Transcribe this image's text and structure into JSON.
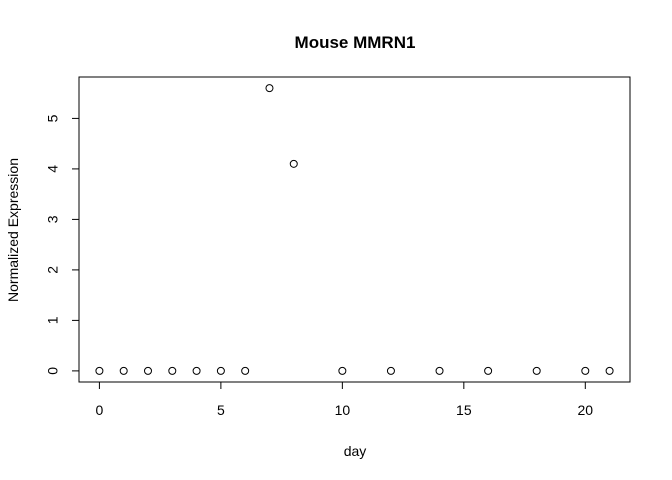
{
  "chart_data": {
    "type": "scatter",
    "title": "Mouse MMRN1",
    "xlabel": "day",
    "ylabel": "Normalized Expression",
    "xlim": [
      -0.84,
      21.84
    ],
    "ylim": [
      -0.22,
      5.82
    ],
    "xticks": [
      0,
      5,
      10,
      15,
      20
    ],
    "yticks": [
      0,
      1,
      2,
      3,
      4,
      5
    ],
    "grid": false,
    "marker": "open-circle",
    "series": [
      {
        "x": [
          0,
          1,
          2,
          3,
          4,
          5,
          6,
          7,
          8,
          10,
          12,
          14,
          16,
          18,
          20,
          21
        ],
        "y": [
          0,
          0,
          0,
          0,
          0,
          0,
          0,
          5.6,
          4.1,
          0,
          0,
          0,
          0,
          0,
          0,
          0
        ]
      }
    ]
  }
}
